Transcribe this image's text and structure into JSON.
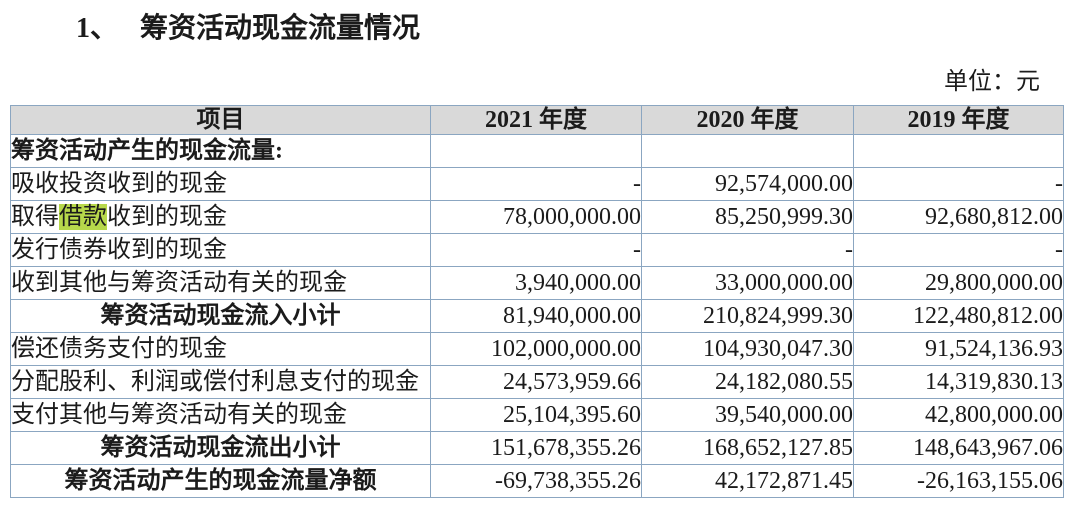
{
  "page": {
    "title_number": "1、",
    "title": "筹资活动现金流量情况",
    "unit_label": "单位：元"
  },
  "colors": {
    "header_bg": "#d9d9d9",
    "border": "#8ba6c1",
    "outer_border": "#8a93a0",
    "highlight": "#b7d84b",
    "text": "#1b1b1b"
  },
  "table": {
    "columns": [
      "项目",
      "2021 年度",
      "2020 年度",
      "2019 年度"
    ],
    "rows": [
      {
        "label": "筹资活动产生的现金流量:",
        "style": "section",
        "values": [
          "",
          "",
          ""
        ]
      },
      {
        "label": "吸收投资收到的现金",
        "style": "item",
        "values": [
          "-",
          "92,574,000.00",
          "-"
        ]
      },
      {
        "label_parts": {
          "pre": "取得",
          "highlight": "借款",
          "post": "收到的现金"
        },
        "style": "item",
        "values": [
          "78,000,000.00",
          "85,250,999.30",
          "92,680,812.00"
        ]
      },
      {
        "label": "发行债券收到的现金",
        "style": "item",
        "values": [
          "-",
          "-",
          "-"
        ]
      },
      {
        "label": "收到其他与筹资活动有关的现金",
        "style": "item",
        "values": [
          "3,940,000.00",
          "33,000,000.00",
          "29,800,000.00"
        ]
      },
      {
        "label": "筹资活动现金流入小计",
        "style": "subtotal",
        "values": [
          "81,940,000.00",
          "210,824,999.30",
          "122,480,812.00"
        ]
      },
      {
        "label": "偿还债务支付的现金",
        "style": "item",
        "values": [
          "102,000,000.00",
          "104,930,047.30",
          "91,524,136.93"
        ]
      },
      {
        "label": "分配股利、利润或偿付利息支付的现金",
        "style": "item",
        "values": [
          "24,573,959.66",
          "24,182,080.55",
          "14,319,830.13"
        ]
      },
      {
        "label": "支付其他与筹资活动有关的现金",
        "style": "item",
        "values": [
          "25,104,395.60",
          "39,540,000.00",
          "42,800,000.00"
        ]
      },
      {
        "label": "筹资活动现金流出小计",
        "style": "subtotal",
        "values": [
          "151,678,355.26",
          "168,652,127.85",
          "148,643,967.06"
        ]
      },
      {
        "label": "筹资活动产生的现金流量净额",
        "style": "subtotal",
        "values": [
          "-69,738,355.26",
          "42,172,871.45",
          "-26,163,155.06"
        ]
      }
    ]
  }
}
